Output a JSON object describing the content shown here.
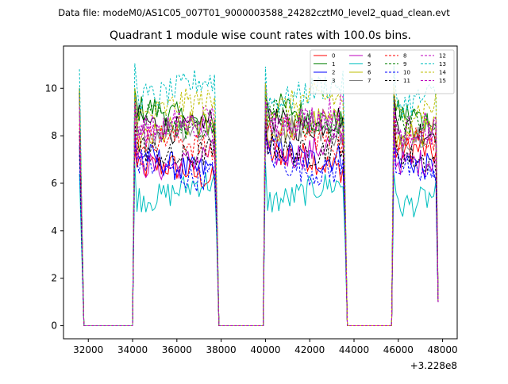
{
  "chart_data": {
    "type": "line",
    "suptitle": "Data file: modeM0/AS1C05_007T01_9000003588_24282cztM0_level2_quad_clean.evt",
    "title": "Quadrant 1 module wise count rates with 100.0s bins.",
    "xlabel": "",
    "ylabel": "",
    "x_offset_label": "+3.228e8",
    "xlim": [
      30880,
      48660
    ],
    "ylim": [
      -0.55,
      11.78
    ],
    "xticks": [
      32000,
      34000,
      36000,
      38000,
      40000,
      42000,
      44000,
      46000,
      48000
    ],
    "xtick_labels": [
      "32000",
      "34000",
      "36000",
      "38000",
      "40000",
      "42000",
      "44000",
      "46000",
      "48000"
    ],
    "yticks": [
      0,
      2,
      4,
      6,
      8,
      10
    ],
    "ytick_labels": [
      "0",
      "2",
      "4",
      "6",
      "8",
      "10"
    ],
    "legend_position": "top-right",
    "legend_columns": 4,
    "grid": false,
    "x_start": 31600,
    "bin_seconds": 100,
    "segments": [
      {
        "start": 31600,
        "end": 31700,
        "kind": "edge"
      },
      {
        "start": 31800,
        "end": 34000,
        "kind": "gap"
      },
      {
        "start": 34100,
        "end": 37800,
        "kind": "data"
      },
      {
        "start": 37900,
        "end": 39900,
        "kind": "gap"
      },
      {
        "start": 40000,
        "end": 43600,
        "kind": "data"
      },
      {
        "start": 43700,
        "end": 45700,
        "kind": "gap"
      },
      {
        "start": 45800,
        "end": 47800,
        "kind": "data"
      }
    ],
    "series": [
      {
        "name": "0",
        "color": "#ff0000",
        "dashed": false,
        "segment_means": [
          6.4,
          6.9,
          7.1
        ],
        "edge_values": [
          9.8,
          1.0
        ]
      },
      {
        "name": "1",
        "color": "#008000",
        "dashed": false,
        "segment_means": [
          8.8,
          8.9,
          8.6
        ],
        "edge_values": [
          10.0,
          1.0
        ]
      },
      {
        "name": "2",
        "color": "#0000ff",
        "dashed": false,
        "segment_means": [
          6.9,
          7.3,
          6.9
        ],
        "edge_values": [
          7.6,
          1.0
        ]
      },
      {
        "name": "3",
        "color": "#000000",
        "dashed": false,
        "segment_means": [
          8.6,
          8.7,
          8.5
        ],
        "edge_values": [
          9.9,
          1.0
        ]
      },
      {
        "name": "4",
        "color": "#bf00bf",
        "dashed": false,
        "segment_means": [
          7.0,
          7.5,
          7.2
        ],
        "edge_values": [
          8.0,
          1.0
        ]
      },
      {
        "name": "5",
        "color": "#00bfbf",
        "dashed": false,
        "segment_means": [
          5.7,
          5.6,
          5.4
        ],
        "edge_values": [
          6.4,
          1.0
        ]
      },
      {
        "name": "6",
        "color": "#bfbf00",
        "dashed": false,
        "segment_means": [
          8.1,
          8.3,
          8.0
        ],
        "edge_values": [
          9.0,
          1.0
        ]
      },
      {
        "name": "7",
        "color": "#808080",
        "dashed": false,
        "segment_means": [
          8.0,
          8.1,
          7.8
        ],
        "edge_values": [
          9.0,
          1.0
        ]
      },
      {
        "name": "8",
        "color": "#ff0000",
        "dashed": true,
        "segment_means": [
          7.6,
          7.9,
          7.7
        ],
        "edge_values": [
          8.5,
          1.0
        ]
      },
      {
        "name": "9",
        "color": "#008000",
        "dashed": true,
        "segment_means": [
          8.4,
          8.6,
          8.4
        ],
        "edge_values": [
          9.4,
          1.0
        ]
      },
      {
        "name": "10",
        "color": "#0000ff",
        "dashed": true,
        "segment_means": [
          6.6,
          6.8,
          6.5
        ],
        "edge_values": [
          7.2,
          1.0
        ]
      },
      {
        "name": "11",
        "color": "#000000",
        "dashed": true,
        "segment_means": [
          7.4,
          7.6,
          7.3
        ],
        "edge_values": [
          8.2,
          1.0
        ]
      },
      {
        "name": "12",
        "color": "#bf00bf",
        "dashed": true,
        "segment_means": [
          8.6,
          8.9,
          8.4
        ],
        "edge_values": [
          9.6,
          1.0
        ]
      },
      {
        "name": "13",
        "color": "#00bfbf",
        "dashed": true,
        "segment_means": [
          10.0,
          9.8,
          9.7
        ],
        "edge_values": [
          10.8,
          1.0
        ]
      },
      {
        "name": "14",
        "color": "#bfbf00",
        "dashed": true,
        "segment_means": [
          9.1,
          9.3,
          9.0
        ],
        "edge_values": [
          9.9,
          1.0
        ]
      },
      {
        "name": "15",
        "color": "#bf00bf",
        "dashed": true,
        "segment_means": [
          8.2,
          8.4,
          8.1
        ],
        "edge_values": [
          9.2,
          1.0
        ]
      }
    ]
  }
}
